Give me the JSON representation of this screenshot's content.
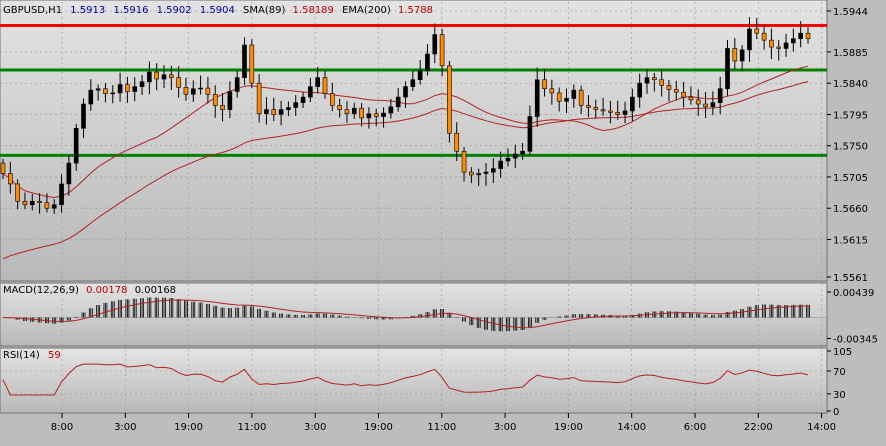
{
  "main_header": {
    "symbol": "GBPUSD,H1",
    "ohlc": [
      "1.5913",
      "1.5916",
      "1.5902",
      "1.5904"
    ],
    "sma_label": "SMA(89)",
    "sma_value": "1.58189",
    "ema_label": "EMA(200)",
    "ema_value": "1.5788"
  },
  "macd_header": {
    "label": "MACD(12,26,9)",
    "main": "0.00178",
    "signal": "0.00168"
  },
  "rsi_header": {
    "label": "RSI(14)",
    "value": "59"
  },
  "colors": {
    "bull": "#000000",
    "bear": "#ff8c00",
    "support": "#008000",
    "resistance": "#ff0000",
    "ma": "#b22222",
    "grid": "#999999",
    "text_blue": "#0000a0",
    "text_red": "#c00000"
  },
  "time_labels": [
    "8:00",
    "3:00",
    "19:00",
    "11:00",
    "3:00",
    "19:00",
    "11:00",
    "3:00",
    "19:00",
    "14:00",
    "6:00",
    "22:00",
    "14:00"
  ],
  "chart_data": [
    {
      "type": "candlestick",
      "title": "GBPUSD,H1",
      "y_ticks": [
        "1.5944",
        "1.5885",
        "1.5840",
        "1.5795",
        "1.5750",
        "1.5705",
        "1.5660",
        "1.5615",
        "1.5561"
      ],
      "ylim": [
        1.5561,
        1.5954
      ],
      "horizontal_lines": [
        {
          "role": "resistance",
          "value": 1.5923
        },
        {
          "role": "support",
          "value": 1.5859
        },
        {
          "role": "support",
          "value": 1.5736
        }
      ],
      "close_series": [
        1.571,
        1.5695,
        1.567,
        1.5665,
        1.567,
        1.5668,
        1.566,
        1.5665,
        1.5695,
        1.5725,
        1.5775,
        1.581,
        1.583,
        1.5832,
        1.5825,
        1.5826,
        1.5838,
        1.5828,
        1.5835,
        1.5842,
        1.5856,
        1.5846,
        1.5852,
        1.5848,
        1.5834,
        1.5824,
        1.5832,
        1.5833,
        1.5824,
        1.5808,
        1.5802,
        1.5828,
        1.5848,
        1.5895,
        1.584,
        1.5796,
        1.5802,
        1.5795,
        1.5802,
        1.5805,
        1.5812,
        1.582,
        1.5835,
        1.5848,
        1.5825,
        1.5808,
        1.5802,
        1.5796,
        1.5804,
        1.579,
        1.5796,
        1.5792,
        1.5797,
        1.5806,
        1.582,
        1.5835,
        1.5845,
        1.5858,
        1.5882,
        1.591,
        1.5865,
        1.5768,
        1.5742,
        1.5712,
        1.5708,
        1.571,
        1.5712,
        1.5717,
        1.5728,
        1.5732,
        1.5738,
        1.5742,
        1.5792,
        1.5845,
        1.5832,
        1.5826,
        1.5814,
        1.5818,
        1.583,
        1.5808,
        1.5805,
        1.5802,
        1.58,
        1.5798,
        1.5795,
        1.58,
        1.582,
        1.584,
        1.5848,
        1.5845,
        1.5837,
        1.5831,
        1.5827,
        1.582,
        1.5816,
        1.581,
        1.5806,
        1.5812,
        1.5832,
        1.589,
        1.5872,
        1.5888,
        1.5918,
        1.5912,
        1.5902,
        1.5892,
        1.589,
        1.5898,
        1.5904,
        1.5912,
        1.5904
      ],
      "series": [
        {
          "name": "SMA(89)",
          "last_value": 1.58189
        },
        {
          "name": "EMA(200)",
          "last_value": 1.5788
        }
      ]
    },
    {
      "type": "bar",
      "title": "MACD(12,26,9)",
      "y_ticks": [
        "0.00439",
        "-0.00345"
      ],
      "ylim": [
        -0.0042,
        0.0052
      ],
      "series": [
        {
          "name": "MACD",
          "last_value": 0.00178
        },
        {
          "name": "Signal",
          "last_value": 0.00168
        }
      ]
    },
    {
      "type": "line",
      "title": "RSI(14)",
      "y_ticks": [
        "105",
        "70",
        "30",
        "0"
      ],
      "ylim": [
        0,
        105
      ],
      "series": [
        {
          "name": "RSI(14)",
          "last_value": 59
        }
      ]
    }
  ]
}
